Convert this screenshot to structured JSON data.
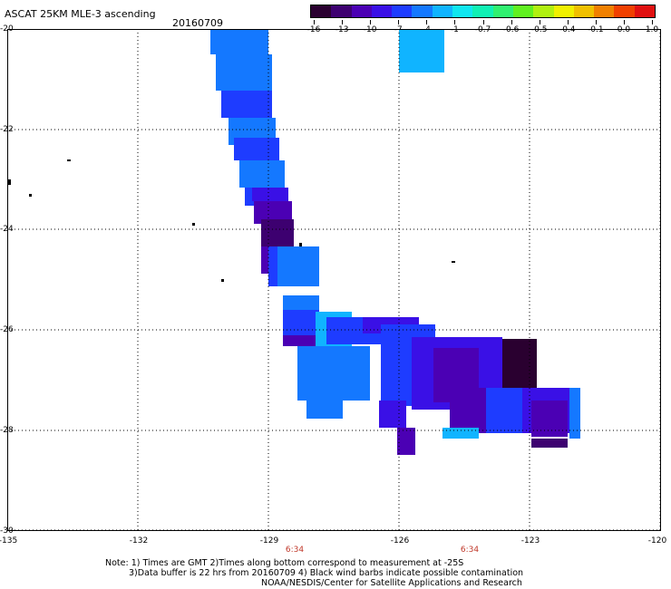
{
  "header": {
    "title": "ASCAT 25KM MLE-3 ascending",
    "date": "20160709"
  },
  "colorbar": {
    "tick_labels": [
      "-16",
      "-13",
      "-10",
      "-7",
      "-4",
      "-1",
      "-0.7",
      "-0.6",
      "-0.5",
      "-0.4",
      "-0.1",
      "0.0",
      "1.0"
    ],
    "colors": [
      "#2a0030",
      "#3d0070",
      "#4b00b4",
      "#3a10e6",
      "#1e3cff",
      "#1478ff",
      "#10b4ff",
      "#10e6f0",
      "#10f0b4",
      "#30f070",
      "#60f020",
      "#b0f010",
      "#f0f000",
      "#f0c000",
      "#f08000",
      "#f04000",
      "#e01010"
    ]
  },
  "map": {
    "y_tick_labels": [
      "-20",
      "-22",
      "-24",
      "-26",
      "-28",
      "-30"
    ],
    "x_tick_labels": [
      "-135",
      "-132",
      "-129",
      "-126",
      "-123",
      "-120"
    ],
    "time_labels": [
      "6:34",
      "6:34"
    ]
  },
  "notes": {
    "line1": "Note: 1) Times are GMT 2)Times along bottom correspond to measurement at -25S",
    "line2": "3)Data buffer is 22 hrs from 20160709 4) Black wind barbs indicate possible contamination",
    "line3": "NOAA/NESDIS/Center for Satellite Applications and Research"
  }
}
